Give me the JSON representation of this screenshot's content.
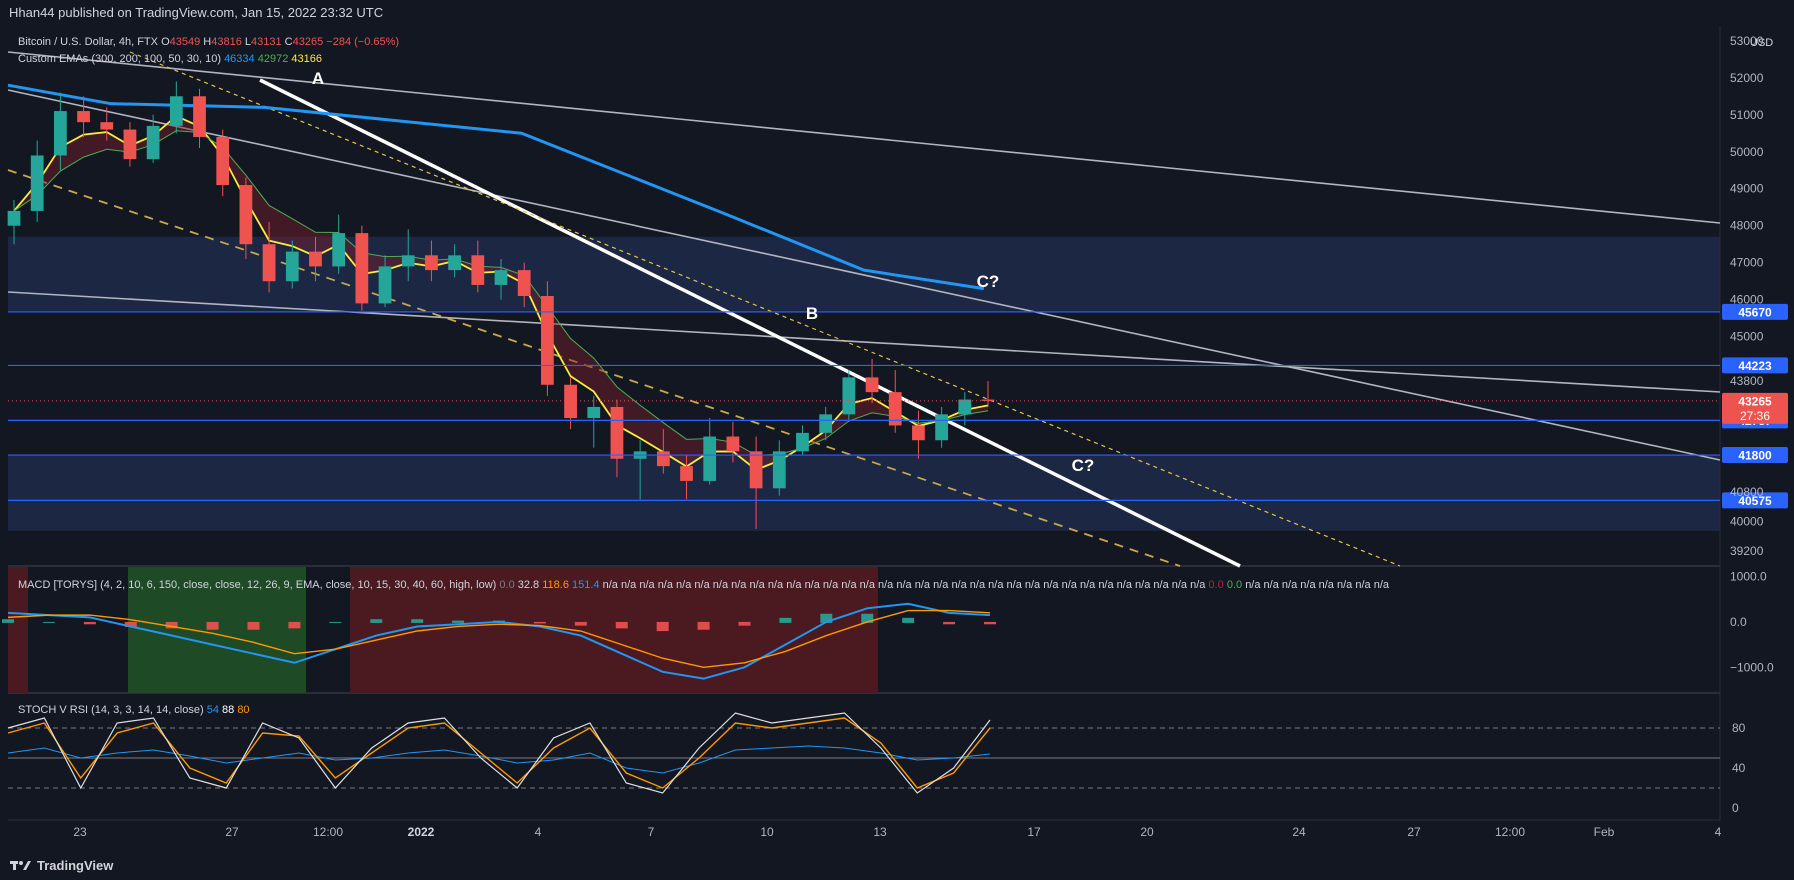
{
  "header": {
    "published": "Hhan44 published on TradingView.com, Jan 15, 2022 23:32 UTC"
  },
  "symbol": {
    "name": "Bitcoin / U.S. Dollar, 4h, FTX",
    "open_label": "O",
    "open": "43549",
    "high_label": "H",
    "high": "43816",
    "low_label": "L",
    "low": "43131",
    "close_label": "C",
    "close": "43265",
    "change": "−284 (−0.65%)"
  },
  "ema_legend": {
    "name": "Custom EMAs (300, 200, 100, 50, 30, 10)",
    "v1": "46334",
    "v2": "42972",
    "v3": "43166"
  },
  "macd_legend": {
    "name": "MACD [TORYS] (4, 2, 10, 6, 150, close, close, 12, 26, 9, EMA, close, 10, 15, 30, 40, 60, high, low)",
    "values": [
      "0.0",
      "32.8",
      "118.6",
      "151.4",
      "n/a",
      "n/a",
      "n/a",
      "n/a",
      "n/a",
      "n/a",
      "n/a",
      "n/a",
      "n/a",
      "n/a",
      "n/a",
      "n/a",
      "n/a",
      "n/a",
      "n/a",
      "n/a",
      "n/a",
      "n/a",
      "n/a",
      "n/a",
      "n/a",
      "n/a",
      "n/a",
      "n/a",
      "n/a",
      "n/a",
      "n/a",
      "n/a",
      "n/a",
      "n/a",
      "n/a",
      "n/a",
      "n/a",
      "0.0",
      "0.0",
      "n/a",
      "n/a",
      "n/a",
      "n/a",
      "n/a",
      "n/a",
      "n/a",
      "n/a"
    ],
    "colors": [
      "#787b86",
      "#d1d4dc",
      "#ff9800",
      "#2196f3",
      "#d1d4dc",
      "#d1d4dc",
      "#d1d4dc",
      "#d1d4dc",
      "#d1d4dc",
      "#d1d4dc",
      "#d1d4dc",
      "#d1d4dc",
      "#d1d4dc",
      "#d1d4dc",
      "#d1d4dc",
      "#d1d4dc",
      "#d1d4dc",
      "#d1d4dc",
      "#d1d4dc",
      "#d1d4dc",
      "#d1d4dc",
      "#d1d4dc",
      "#d1d4dc",
      "#d1d4dc",
      "#d1d4dc",
      "#d1d4dc",
      "#d1d4dc",
      "#d1d4dc",
      "#d1d4dc",
      "#d1d4dc",
      "#d1d4dc",
      "#d1d4dc",
      "#d1d4dc",
      "#d1d4dc",
      "#d1d4dc",
      "#d1d4dc",
      "#d1d4dc",
      "#b22833",
      "#4caf50",
      "#d1d4dc",
      "#d1d4dc",
      "#d1d4dc",
      "#d1d4dc",
      "#d1d4dc",
      "#d1d4dc",
      "#d1d4dc",
      "#d1d4dc"
    ]
  },
  "stoch_legend": {
    "name": "STOCH V RSI (14, 3, 3, 14, 14, close)",
    "v1": "54",
    "v2": "88",
    "v3": "80"
  },
  "footer": {
    "brand": "TradingView"
  },
  "colors": {
    "background": "#131722",
    "up": "#26a69a",
    "down": "#ef5350",
    "ema_blue": "#2196f3",
    "ema_yellow": "#ffeb3b",
    "level_line": "#2962ff",
    "label_bg": "#2962ff",
    "zone": "#1e2a4a"
  },
  "chart_data": {
    "type": "line",
    "price_pane": {
      "y_ticks": [
        "53000",
        "52000",
        "51000",
        "50000",
        "49000",
        "48000",
        "47000",
        "46000",
        "45000",
        "43800",
        "40800",
        "40000",
        "39200"
      ],
      "ylim": [
        38800,
        53400
      ],
      "currency": "USD",
      "horizontal_levels": [
        {
          "value": 45670,
          "label": "45670"
        },
        {
          "value": 44223,
          "label": "44223"
        },
        {
          "value": 42737,
          "label": "42737"
        },
        {
          "value": 41800,
          "label": "41800"
        },
        {
          "value": 40575,
          "label": "40575"
        }
      ],
      "last_price": {
        "value": 43265,
        "label": "43265",
        "countdown": "27:36"
      },
      "zones": [
        {
          "top": 47700,
          "bottom": 45700
        },
        {
          "top": 41800,
          "bottom": 39750
        }
      ],
      "annotations": [
        {
          "text": "A",
          "x": "Dec 28",
          "y": 52200
        },
        {
          "text": "B",
          "x": "Jan 12",
          "y": 45000
        },
        {
          "text": "C?",
          "x": "Jan 15",
          "y": 45950
        },
        {
          "text": "C?",
          "x": "Jan 17",
          "y": 40900
        }
      ],
      "ema_300_path": [
        [
          0,
          51800
        ],
        [
          0.06,
          51300
        ],
        [
          0.15,
          51200
        ],
        [
          0.3,
          50500
        ],
        [
          0.42,
          48300
        ],
        [
          0.5,
          46800
        ],
        [
          0.57,
          46300
        ]
      ],
      "candles_ohlc_approx": [
        [
          48000,
          48700,
          47500,
          48400
        ],
        [
          48400,
          50300,
          48100,
          49900
        ],
        [
          49900,
          51600,
          49500,
          51100
        ],
        [
          51100,
          51500,
          50400,
          50800
        ],
        [
          50800,
          51200,
          50300,
          50600
        ],
        [
          50600,
          50800,
          49600,
          49800
        ],
        [
          49800,
          51000,
          49700,
          50700
        ],
        [
          50700,
          51900,
          50500,
          51500
        ],
        [
          51500,
          51700,
          50100,
          50400
        ],
        [
          50400,
          50600,
          48800,
          49100
        ],
        [
          49100,
          49300,
          47100,
          47500
        ],
        [
          47500,
          48100,
          46200,
          46500
        ],
        [
          46500,
          47600,
          46300,
          47300
        ],
        [
          47300,
          47700,
          46500,
          46900
        ],
        [
          46900,
          48300,
          46700,
          47800
        ],
        [
          47800,
          48000,
          45700,
          45900
        ],
        [
          45900,
          47200,
          45800,
          46900
        ],
        [
          46900,
          47900,
          46500,
          47200
        ],
        [
          47200,
          47600,
          46500,
          46800
        ],
        [
          46800,
          47500,
          46600,
          47200
        ],
        [
          47200,
          47600,
          46200,
          46400
        ],
        [
          46400,
          47100,
          46000,
          46800
        ],
        [
          46800,
          47000,
          45800,
          46100
        ],
        [
          46100,
          46500,
          43400,
          43700
        ],
        [
          43700,
          43900,
          42500,
          42800
        ],
        [
          42800,
          43400,
          42000,
          43100
        ],
        [
          43100,
          43300,
          41200,
          41700
        ],
        [
          41700,
          42200,
          40600,
          41900
        ],
        [
          41900,
          42500,
          41300,
          41500
        ],
        [
          41500,
          41800,
          40600,
          41100
        ],
        [
          41100,
          42800,
          41000,
          42300
        ],
        [
          42300,
          42700,
          41600,
          41900
        ],
        [
          41900,
          42300,
          39800,
          40900
        ],
        [
          40900,
          42200,
          40700,
          41900
        ],
        [
          41900,
          42600,
          41800,
          42400
        ],
        [
          42400,
          43100,
          42200,
          42900
        ],
        [
          42900,
          44100,
          42700,
          43900
        ],
        [
          43900,
          44400,
          43200,
          43500
        ],
        [
          43500,
          44100,
          42400,
          42600
        ],
        [
          42600,
          43000,
          41700,
          42200
        ],
        [
          42200,
          43100,
          42000,
          42900
        ],
        [
          42900,
          43500,
          42600,
          43300
        ],
        [
          43300,
          43800,
          43100,
          43265
        ]
      ]
    },
    "x_ticks": [
      "23",
      "27",
      "12:00",
      "2022",
      "4",
      "7",
      "10",
      "13",
      "17",
      "20",
      "24",
      "27",
      "12:00",
      "Feb",
      "4"
    ],
    "macd_pane": {
      "y_ticks": [
        "1000.0",
        "0.0",
        "−1000.0"
      ],
      "ylim": [
        -1500,
        1100
      ],
      "macd_line": [
        200,
        150,
        100,
        -100,
        -300,
        -500,
        -700,
        -900,
        -600,
        -300,
        -100,
        -50,
        0,
        -100,
        -300,
        -700,
        -1100,
        -1250,
        -1000,
        -500,
        0,
        300,
        400,
        200,
        150
      ],
      "signal_line": [
        100,
        150,
        150,
        50,
        -100,
        -250,
        -450,
        -700,
        -600,
        -400,
        -200,
        -100,
        -50,
        -80,
        -200,
        -500,
        -800,
        -1000,
        -900,
        -650,
        -300,
        0,
        250,
        250,
        200
      ]
    },
    "stoch_pane": {
      "y_ticks": [
        "80",
        "40",
        "0"
      ],
      "ylim": [
        -10,
        110
      ],
      "levels": [
        80,
        50,
        20
      ],
      "k_line": [
        80,
        90,
        20,
        85,
        90,
        30,
        20,
        85,
        70,
        20,
        60,
        85,
        90,
        50,
        20,
        70,
        85,
        25,
        15,
        60,
        95,
        85,
        90,
        95,
        60,
        15,
        40,
        88
      ],
      "d_line": [
        75,
        85,
        30,
        75,
        85,
        40,
        25,
        75,
        72,
        30,
        55,
        80,
        85,
        55,
        25,
        60,
        80,
        35,
        20,
        50,
        85,
        80,
        85,
        90,
        65,
        20,
        35,
        80
      ],
      "rsi_line": [
        55,
        60,
        50,
        55,
        58,
        52,
        45,
        50,
        55,
        48,
        50,
        55,
        58,
        52,
        45,
        48,
        55,
        40,
        35,
        45,
        58,
        60,
        62,
        60,
        55,
        48,
        50,
        54
      ]
    }
  }
}
